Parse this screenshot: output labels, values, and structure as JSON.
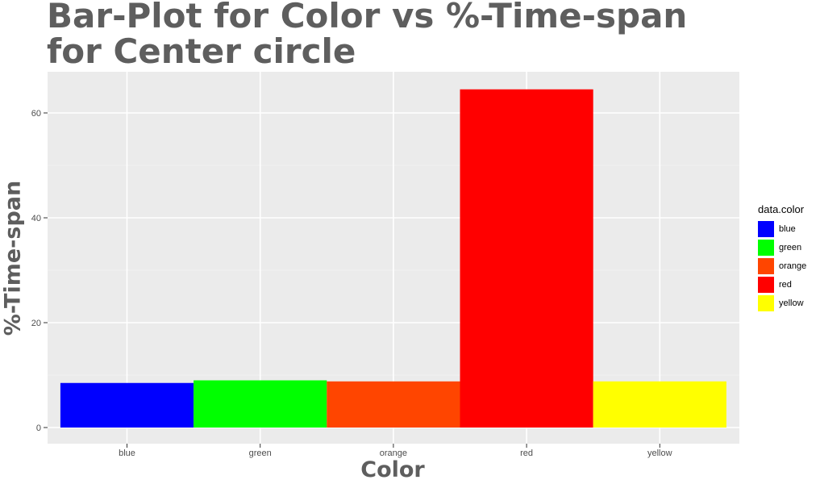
{
  "chart_data": {
    "type": "bar",
    "title_lines": [
      "Bar-Plot for Color vs %-Time-span",
      "for Center circle"
    ],
    "xlabel": "Color",
    "ylabel": "%-Time-span",
    "categories": [
      "blue",
      "green",
      "orange",
      "red",
      "yellow"
    ],
    "values": [
      8.5,
      9.0,
      8.8,
      64.5,
      8.8
    ],
    "colors": [
      "#0000ff",
      "#00ff00",
      "#ff4500",
      "#ff0000",
      "#ffff00"
    ],
    "ylim": [
      0,
      67.5
    ],
    "yticks": [
      0,
      20,
      40,
      60
    ],
    "grid": true,
    "background": "#ebebeb",
    "legend": {
      "title": "data.color",
      "position": "right",
      "items": [
        {
          "label": "blue",
          "color": "#0000ff"
        },
        {
          "label": "green",
          "color": "#00ff00"
        },
        {
          "label": "orange",
          "color": "#ff4500"
        },
        {
          "label": "red",
          "color": "#ff0000"
        },
        {
          "label": "yellow",
          "color": "#ffff00"
        }
      ]
    }
  }
}
